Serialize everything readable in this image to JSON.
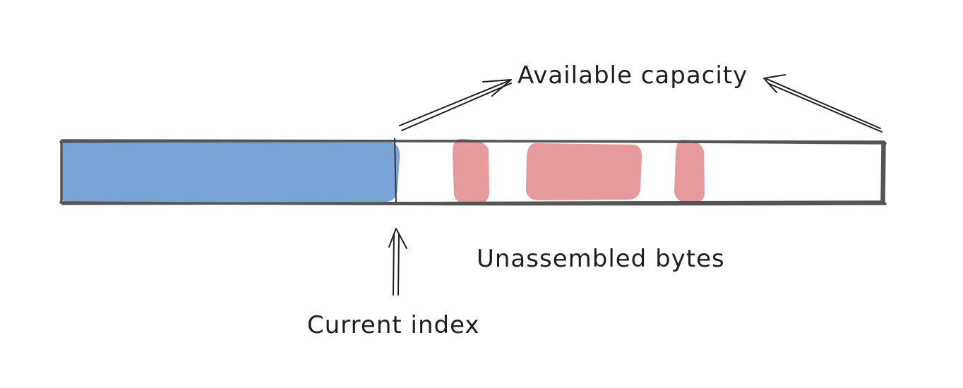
{
  "labels": {
    "available_capacity": "Available capacity",
    "unassembled_bytes": "Unassembled bytes",
    "current_index": "Current index"
  },
  "colors": {
    "assembled_fill": "#6a9bd1",
    "unassembled_fill": "#e08a8a",
    "outline": "#555555",
    "ink": "#1e1e1e"
  }
}
